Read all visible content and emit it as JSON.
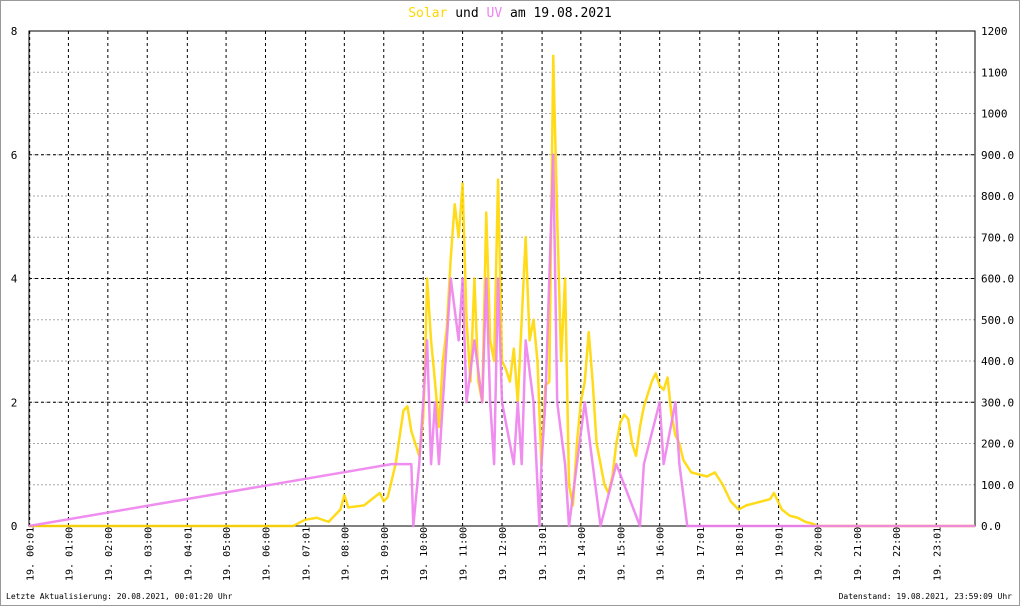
{
  "chart_data": {
    "type": "line",
    "title_parts": [
      "und",
      "am 19.08.2021"
    ],
    "footer_left": "Letzte Aktualisierung: 20.08.2021, 00:01:20 Uhr",
    "footer_right": "Datenstand: 19.08.2021, 23:59:09 Uhr",
    "xlim": [
      0,
      24
    ],
    "xticks": [
      {
        "value": 0.017,
        "label": "19. 00:01"
      },
      {
        "value": 1,
        "label": "19. 01:00"
      },
      {
        "value": 2,
        "label": "19. 02:00"
      },
      {
        "value": 3,
        "label": "19. 03:00"
      },
      {
        "value": 4.017,
        "label": "19. 04:01"
      },
      {
        "value": 5,
        "label": "19. 05:00"
      },
      {
        "value": 6,
        "label": "19. 06:00"
      },
      {
        "value": 7.017,
        "label": "19. 07:01"
      },
      {
        "value": 8,
        "label": "19. 08:00"
      },
      {
        "value": 9,
        "label": "19. 09:00"
      },
      {
        "value": 10,
        "label": "19. 10:00"
      },
      {
        "value": 11,
        "label": "19. 11:00"
      },
      {
        "value": 12,
        "label": "19. 12:00"
      },
      {
        "value": 13.017,
        "label": "19. 13:01"
      },
      {
        "value": 14,
        "label": "19. 14:00"
      },
      {
        "value": 15,
        "label": "19. 15:00"
      },
      {
        "value": 16,
        "label": "19. 16:00"
      },
      {
        "value": 17.017,
        "label": "19. 17:01"
      },
      {
        "value": 18.017,
        "label": "19. 18:01"
      },
      {
        "value": 19.017,
        "label": "19. 19:01"
      },
      {
        "value": 20,
        "label": "19. 20:00"
      },
      {
        "value": 21,
        "label": "19. 21:00"
      },
      {
        "value": 22,
        "label": "19. 22:00"
      },
      {
        "value": 23.017,
        "label": "19. 23:01"
      }
    ],
    "ylim": [
      0,
      8
    ],
    "yticks": [
      0,
      2,
      4,
      6,
      8
    ],
    "y2lim": [
      0,
      1200
    ],
    "y2ticks": [
      {
        "value": 0,
        "label": "0.0"
      },
      {
        "value": 100,
        "label": "100.0"
      },
      {
        "value": 200,
        "label": "200.0"
      },
      {
        "value": 300,
        "label": "300.0"
      },
      {
        "value": 400,
        "label": "400.0"
      },
      {
        "value": 500,
        "label": "500.0"
      },
      {
        "value": 600,
        "label": "600.0"
      },
      {
        "value": 700,
        "label": "700.0"
      },
      {
        "value": 800,
        "label": "800.0"
      },
      {
        "value": 900,
        "label": "900.0"
      },
      1000,
      1100,
      1200
    ],
    "grid": true,
    "series": [
      {
        "name": "Solar",
        "color": "#ffd700",
        "axis": "y2",
        "x": [
          0,
          6.7,
          6.8,
          7.0,
          7.3,
          7.6,
          7.9,
          8.0,
          8.1,
          8.5,
          8.9,
          9.0,
          9.1,
          9.3,
          9.5,
          9.6,
          9.7,
          9.8,
          9.9,
          10.0,
          10.05,
          10.1,
          10.2,
          10.3,
          10.4,
          10.5,
          10.6,
          10.7,
          10.8,
          10.9,
          11.0,
          11.1,
          11.2,
          11.3,
          11.4,
          11.5,
          11.6,
          11.7,
          11.8,
          11.9,
          12.0,
          12.1,
          12.2,
          12.3,
          12.4,
          12.5,
          12.6,
          12.7,
          12.8,
          12.9,
          13.0,
          13.1,
          13.2,
          13.3,
          13.4,
          13.5,
          13.6,
          13.7,
          13.8,
          13.9,
          14.0,
          14.1,
          14.2,
          14.3,
          14.4,
          14.5,
          14.6,
          14.7,
          14.8,
          14.9,
          15.0,
          15.1,
          15.2,
          15.3,
          15.4,
          15.5,
          15.6,
          15.7,
          15.8,
          15.9,
          16.0,
          16.1,
          16.2,
          16.3,
          16.4,
          16.5,
          16.6,
          16.8,
          17.0,
          17.2,
          17.4,
          17.6,
          17.8,
          18.0,
          18.2,
          18.4,
          18.6,
          18.8,
          18.9,
          19.0,
          19.1,
          19.3,
          19.5,
          19.7,
          19.9,
          20.0,
          24
        ],
        "values": [
          0,
          0,
          5,
          15,
          20,
          10,
          40,
          75,
          45,
          50,
          80,
          60,
          70,
          150,
          280,
          290,
          230,
          200,
          170,
          260,
          400,
          600,
          450,
          350,
          240,
          400,
          480,
          650,
          780,
          700,
          830,
          500,
          350,
          600,
          350,
          300,
          760,
          450,
          400,
          840,
          400,
          380,
          350,
          430,
          300,
          500,
          700,
          450,
          500,
          400,
          150,
          340,
          350,
          1140,
          750,
          400,
          600,
          100,
          50,
          200,
          300,
          350,
          470,
          350,
          200,
          150,
          100,
          80,
          120,
          200,
          250,
          270,
          260,
          200,
          170,
          240,
          290,
          320,
          350,
          370,
          340,
          330,
          360,
          270,
          220,
          200,
          160,
          130,
          125,
          120,
          130,
          100,
          60,
          40,
          50,
          55,
          60,
          65,
          80,
          60,
          40,
          25,
          20,
          10,
          5,
          0,
          0
        ]
      },
      {
        "name": "UV",
        "color": "#ee82ee",
        "axis": "y",
        "x": [
          0,
          9.2,
          9.7,
          9.75,
          9.9,
          10.0,
          10.1,
          10.2,
          10.3,
          10.4,
          10.5,
          10.6,
          10.7,
          10.9,
          11.0,
          11.1,
          11.3,
          11.5,
          11.6,
          11.7,
          11.8,
          11.9,
          12.0,
          12.3,
          12.4,
          12.5,
          12.6,
          12.8,
          12.95,
          13.0,
          13.1,
          13.3,
          13.4,
          13.6,
          13.7,
          13.9,
          14.1,
          14.3,
          14.5,
          14.9,
          15.5,
          15.6,
          16.0,
          16.1,
          16.4,
          16.5,
          16.7,
          24
        ],
        "values": [
          0,
          1,
          1,
          0,
          1,
          2,
          3,
          1,
          2,
          1,
          2,
          3,
          4,
          3,
          4,
          2,
          3,
          2,
          4,
          2,
          1,
          4,
          2,
          1,
          2,
          1,
          3,
          2,
          0,
          1,
          2,
          6,
          2,
          1,
          0,
          1,
          2,
          1,
          0,
          1,
          0,
          1,
          2,
          1,
          2,
          1,
          0,
          0
        ]
      }
    ]
  }
}
